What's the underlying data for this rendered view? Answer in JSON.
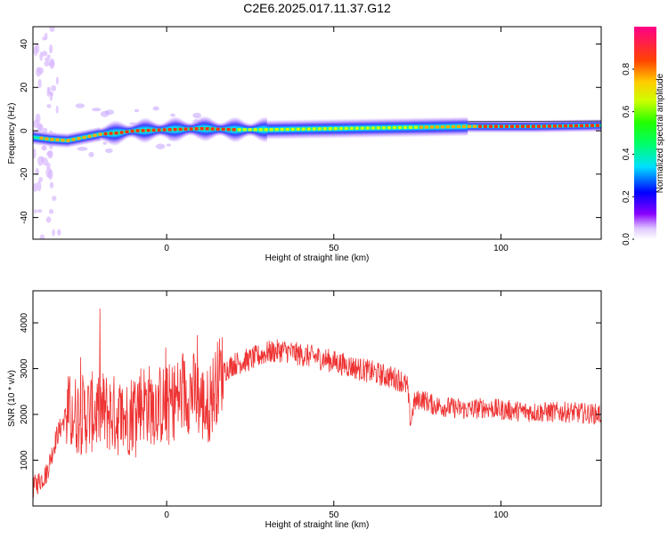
{
  "title": "C2E6.2025.017.11.37.G12",
  "chart_data": [
    {
      "type": "heatmap",
      "xlabel": "Height of straight line (km)",
      "ylabel": "Frequency (Hz)",
      "xlim": [
        -40,
        130
      ],
      "ylim": [
        -50,
        48
      ],
      "x_ticks": [
        0,
        50,
        100
      ],
      "y_ticks": [
        -40,
        -20,
        0,
        20,
        40
      ],
      "colorbar": {
        "label": "Normalized spectral amplitude",
        "range": [
          0,
          1
        ],
        "ticks": [
          "0.0",
          "0.2",
          "0.4",
          "0.6",
          "0.8"
        ]
      },
      "ridge": {
        "x": [
          -40,
          -35,
          -30,
          -25,
          -20,
          -15,
          -10,
          0,
          10,
          20,
          30,
          50,
          70,
          90,
          110,
          130
        ],
        "frequency_hz": [
          -3,
          -4,
          -4.5,
          -3,
          -1.5,
          -1,
          0,
          0.5,
          1,
          0.5,
          0.5,
          1,
          1.5,
          2,
          2,
          2.5
        ]
      }
    },
    {
      "type": "line",
      "xlabel": "Height of straight line (km)",
      "ylabel": "SNR (10 * v/v)",
      "xlim": [
        -40,
        130
      ],
      "ylim": [
        0,
        4700
      ],
      "x_ticks": [
        0,
        50,
        100
      ],
      "y_ticks": [
        1000,
        2000,
        3000,
        4000
      ],
      "series": [
        {
          "color": "#ee3333",
          "x": [
            -40,
            -36,
            -33,
            -30,
            -27,
            -24,
            -20,
            -16,
            -12,
            -8,
            -4,
            0,
            4,
            8,
            12,
            16,
            20,
            25,
            30,
            35,
            40,
            45,
            50,
            55,
            60,
            65,
            70,
            72,
            73,
            74,
            76,
            80,
            85,
            90,
            95,
            100,
            110,
            120,
            130
          ],
          "y": [
            400,
            700,
            1500,
            2000,
            2000,
            2000,
            2100,
            2000,
            1900,
            2300,
            2200,
            2200,
            2400,
            2500,
            2100,
            2900,
            3100,
            3200,
            3350,
            3400,
            3300,
            3250,
            3150,
            3050,
            2950,
            2850,
            2750,
            2600,
            1800,
            2250,
            2350,
            2200,
            2150,
            2100,
            2150,
            2100,
            2050,
            2050,
            2000
          ]
        }
      ]
    }
  ]
}
